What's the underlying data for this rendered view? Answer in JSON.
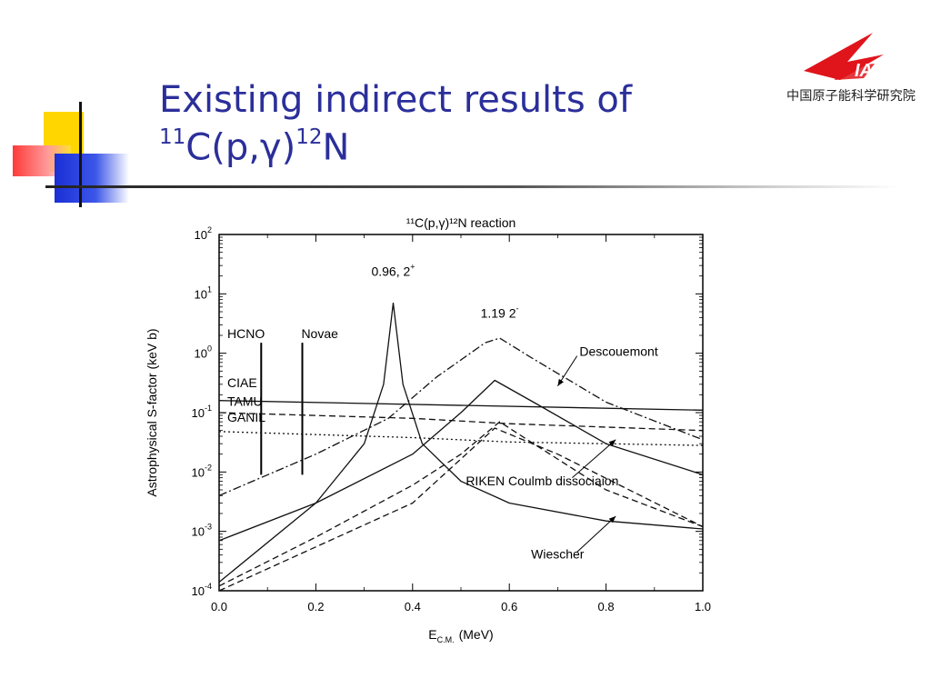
{
  "slide": {
    "title_line1": "Existing indirect results of",
    "title_line2_parts": {
      "sup1": "11",
      "main1": "C(p,",
      "gamma": "γ",
      "main2": ")",
      "sup2": "12",
      "main3": "N"
    }
  },
  "logo": {
    "text": "IAE",
    "subtitle": "中国原子能科学研究院",
    "color": "#e0141b"
  },
  "colors": {
    "title": "#2b2f9a",
    "accent_yellow": "#ffd600",
    "accent_red": "#ff3a3a",
    "accent_blue": "#1a2fd6"
  },
  "chart_data": {
    "type": "line",
    "title": "¹¹C(p,γ)¹²N reaction",
    "xlabel": "E",
    "xlabel_sub": "C.M.",
    "xlabel_unit": "(MeV)",
    "ylabel": "Astrophysical S-factor (keV b)",
    "xlim": [
      0.0,
      1.0
    ],
    "ylim": [
      0.0001,
      100
    ],
    "yscale": "log",
    "grid": false,
    "xticks": [
      "0.0",
      "0.2",
      "0.4",
      "0.6",
      "0.8",
      "1.0"
    ],
    "yticks": [
      {
        "base": "10",
        "exp": "-4"
      },
      {
        "base": "10",
        "exp": "-3"
      },
      {
        "base": "10",
        "exp": "-2"
      },
      {
        "base": "10",
        "exp": "-1"
      },
      {
        "base": "10",
        "exp": "0"
      },
      {
        "base": "10",
        "exp": "1"
      },
      {
        "base": "10",
        "exp": "2"
      }
    ],
    "series": [
      {
        "style": "solid",
        "x": [
          0.0,
          0.2,
          0.3,
          0.34,
          0.36,
          0.38,
          0.42,
          0.5,
          0.6,
          0.8,
          1.0
        ],
        "y": [
          0.00014,
          0.003,
          0.03,
          0.3,
          7,
          0.3,
          0.03,
          0.007,
          0.003,
          0.0015,
          0.0011
        ]
      },
      {
        "style": "solid",
        "x": [
          0.0,
          0.2,
          0.4,
          0.5,
          0.57,
          0.65,
          0.8,
          1.0
        ],
        "y": [
          0.0007,
          0.003,
          0.02,
          0.1,
          0.35,
          0.15,
          0.03,
          0.009
        ]
      },
      {
        "style": "dashdot",
        "x": [
          0.0,
          0.2,
          0.35,
          0.45,
          0.55,
          0.58,
          0.65,
          0.8,
          1.0
        ],
        "y": [
          0.004,
          0.02,
          0.08,
          0.4,
          1.5,
          1.8,
          0.8,
          0.15,
          0.035
        ]
      },
      {
        "style": "dash",
        "x": [
          0.0,
          0.2,
          0.4,
          0.5,
          0.58,
          0.65,
          0.8,
          1.0
        ],
        "y": [
          0.00012,
          0.0008,
          0.006,
          0.02,
          0.07,
          0.03,
          0.005,
          0.0012
        ]
      },
      {
        "style": "solid",
        "x": [
          0.0,
          1.0
        ],
        "y": [
          0.16,
          0.11
        ]
      },
      {
        "style": "dash",
        "x": [
          0.0,
          0.4,
          0.6,
          1.0
        ],
        "y": [
          0.1,
          0.08,
          0.065,
          0.05
        ]
      },
      {
        "style": "dot",
        "x": [
          0.0,
          0.4,
          0.6,
          1.0
        ],
        "y": [
          0.048,
          0.038,
          0.032,
          0.028
        ]
      },
      {
        "style": "dash",
        "x": [
          0.0,
          0.4,
          0.57,
          0.7,
          1.0
        ],
        "y": [
          0.0001,
          0.003,
          0.055,
          0.02,
          0.0012
        ]
      }
    ],
    "vertical_markers": [
      {
        "x": 0.087,
        "y_top": 1.5,
        "y_bottom": 0.009
      },
      {
        "x": 0.172,
        "y_top": 1.5,
        "y_bottom": 0.009
      }
    ],
    "annotations": [
      {
        "text": "0.96, 2",
        "sup": "+",
        "x": 0.36,
        "y": 20
      },
      {
        "text": "1.19 2",
        "sup": "-",
        "x": 0.58,
        "y": 4
      },
      {
        "text": "HCNO",
        "x": 0.017,
        "y": 1.8
      },
      {
        "text": "Novae",
        "x": 0.17,
        "y": 1.8
      },
      {
        "text": "CIAE",
        "x": 0.017,
        "y": 0.27
      },
      {
        "text": "TAMU",
        "x": 0.017,
        "y": 0.13
      },
      {
        "text": "GANIL",
        "x": 0.017,
        "y": 0.07
      },
      {
        "text": "Descouemont",
        "x": 0.745,
        "y": 0.9
      },
      {
        "text": "RIKEN Coulmb dissociaion",
        "x": 0.51,
        "y": 0.006
      },
      {
        "text": "Wiescher",
        "x": 0.645,
        "y": 0.00035
      }
    ],
    "arrows": [
      {
        "from_x": 0.74,
        "from_y": 0.9,
        "to_x": 0.7,
        "to_y": 0.28
      },
      {
        "from_x": 0.73,
        "from_y": 0.008,
        "to_x": 0.82,
        "to_y": 0.035
      },
      {
        "from_x": 0.74,
        "from_y": 0.00045,
        "to_x": 0.82,
        "to_y": 0.0018
      }
    ]
  }
}
